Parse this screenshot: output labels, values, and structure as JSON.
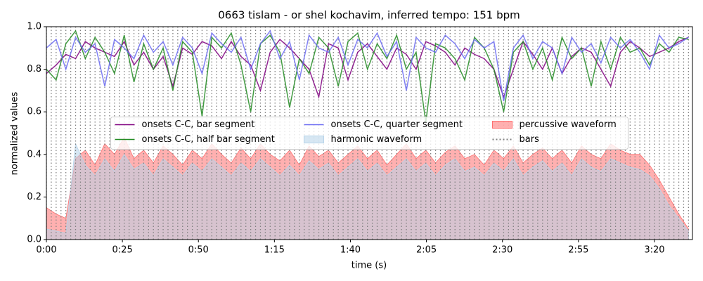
{
  "chart_data": {
    "type": "line",
    "title": "0663 tislam - or shel kochavim, inferred tempo: 151 bpm",
    "xlabel": "time (s)",
    "ylabel": "normalized values",
    "xlim": [
      0,
      212.5
    ],
    "ylim": [
      0,
      1
    ],
    "xticks": [
      {
        "value": 0,
        "label": "0:00"
      },
      {
        "value": 25,
        "label": "0:25"
      },
      {
        "value": 50,
        "label": "0:50"
      },
      {
        "value": 75,
        "label": "1:15"
      },
      {
        "value": 100,
        "label": "1:40"
      },
      {
        "value": 125,
        "label": "2:05"
      },
      {
        "value": 150,
        "label": "2:30"
      },
      {
        "value": 175,
        "label": "2:55"
      },
      {
        "value": 200,
        "label": "3:20"
      }
    ],
    "yticks": [
      {
        "value": 0,
        "label": "0.0"
      },
      0.2,
      0.4,
      0.6,
      0.8,
      {
        "value": 1,
        "label": "1.0"
      }
    ],
    "legend": "center",
    "x": [
      0,
      3.2,
      6.4,
      9.6,
      12.8,
      16,
      19.2,
      22.4,
      25.6,
      28.8,
      32,
      35.2,
      38.4,
      41.6,
      44.8,
      48,
      51.2,
      54.4,
      57.6,
      60.8,
      64,
      67.2,
      70.4,
      73.6,
      76.8,
      80,
      83.2,
      86.4,
      89.6,
      92.8,
      96,
      99.2,
      102.4,
      105.6,
      108.8,
      112,
      115.2,
      118.4,
      121.6,
      124.8,
      128,
      131.2,
      134.4,
      137.6,
      140.8,
      144,
      147.2,
      150.4,
      153.6,
      156.8,
      160,
      163.2,
      166.4,
      169.6,
      172.8,
      176,
      179.2,
      182.4,
      185.6,
      188.8,
      192,
      195.2,
      198.4,
      201.6,
      204.8,
      208,
      211.2
    ],
    "series": [
      {
        "name": "onsets C-C, bar segment",
        "color": "#800080",
        "values": [
          0.78,
          0.82,
          0.87,
          0.85,
          0.93,
          0.9,
          0.88,
          0.86,
          0.93,
          0.82,
          0.88,
          0.8,
          0.86,
          0.72,
          0.9,
          0.87,
          0.93,
          0.91,
          0.85,
          0.93,
          0.86,
          0.82,
          0.7,
          0.88,
          0.94,
          0.9,
          0.85,
          0.8,
          0.67,
          0.92,
          0.9,
          0.75,
          0.88,
          0.92,
          0.86,
          0.8,
          0.9,
          0.87,
          0.8,
          0.93,
          0.91,
          0.88,
          0.82,
          0.9,
          0.87,
          0.85,
          0.8,
          0.67,
          0.8,
          0.93,
          0.87,
          0.8,
          0.9,
          0.78,
          0.86,
          0.9,
          0.88,
          0.8,
          0.72,
          0.88,
          0.93,
          0.9,
          0.86,
          0.88,
          0.9,
          0.93,
          0.95
        ]
      },
      {
        "name": "onsets C-C, half bar segment",
        "color": "#228b22",
        "values": [
          0.8,
          0.75,
          0.92,
          0.98,
          0.85,
          0.95,
          0.88,
          0.78,
          0.96,
          0.74,
          0.92,
          0.8,
          0.9,
          0.7,
          0.93,
          0.88,
          0.58,
          0.95,
          0.9,
          0.97,
          0.82,
          0.6,
          0.92,
          0.96,
          0.88,
          0.62,
          0.85,
          0.78,
          0.95,
          0.9,
          0.72,
          0.93,
          0.97,
          0.8,
          0.92,
          0.85,
          0.96,
          0.8,
          0.88,
          0.55,
          0.92,
          0.9,
          0.85,
          0.75,
          0.95,
          0.9,
          0.8,
          0.6,
          0.88,
          0.93,
          0.8,
          0.9,
          0.75,
          0.95,
          0.85,
          0.9,
          0.72,
          0.93,
          0.8,
          0.95,
          0.88,
          0.9,
          0.82,
          0.92,
          0.88,
          0.95,
          0.94
        ]
      },
      {
        "name": "onsets C-C, quarter segment",
        "color": "#6b6bf2",
        "values": [
          0.9,
          0.94,
          0.8,
          0.95,
          0.88,
          0.92,
          0.72,
          0.94,
          0.9,
          0.85,
          0.96,
          0.88,
          0.93,
          0.82,
          0.95,
          0.9,
          0.78,
          0.97,
          0.92,
          0.88,
          0.95,
          0.8,
          0.92,
          0.98,
          0.85,
          0.93,
          0.75,
          0.96,
          0.9,
          0.88,
          0.95,
          0.82,
          0.94,
          0.9,
          0.97,
          0.86,
          0.93,
          0.7,
          0.95,
          0.9,
          0.88,
          0.96,
          0.92,
          0.85,
          0.94,
          0.9,
          0.93,
          0.65,
          0.9,
          0.96,
          0.85,
          0.93,
          0.9,
          0.78,
          0.95,
          0.88,
          0.92,
          0.83,
          0.95,
          0.9,
          0.94,
          0.88,
          0.8,
          0.96,
          0.9,
          0.92,
          0.95
        ]
      },
      {
        "name": "harmonic waveform",
        "color": "#b7d4ea",
        "fill": true,
        "values": [
          0.05,
          0.04,
          0.03,
          0.45,
          0.35,
          0.3,
          0.38,
          0.32,
          0.4,
          0.33,
          0.36,
          0.3,
          0.38,
          0.34,
          0.3,
          0.36,
          0.32,
          0.38,
          0.34,
          0.3,
          0.36,
          0.32,
          0.38,
          0.34,
          0.3,
          0.35,
          0.3,
          0.37,
          0.33,
          0.36,
          0.3,
          0.34,
          0.38,
          0.32,
          0.36,
          0.3,
          0.34,
          0.38,
          0.32,
          0.36,
          0.3,
          0.35,
          0.38,
          0.32,
          0.34,
          0.3,
          0.36,
          0.32,
          0.38,
          0.3,
          0.34,
          0.37,
          0.32,
          0.36,
          0.3,
          0.38,
          0.34,
          0.32,
          0.38,
          0.36,
          0.34,
          0.33,
          0.3,
          0.24,
          0.16,
          0.1,
          0.04
        ]
      },
      {
        "name": "percussive waveform",
        "color": "#ff7070",
        "fill": true,
        "values": [
          0.15,
          0.12,
          0.1,
          0.38,
          0.42,
          0.35,
          0.45,
          0.4,
          0.48,
          0.38,
          0.42,
          0.36,
          0.44,
          0.4,
          0.35,
          0.42,
          0.38,
          0.45,
          0.4,
          0.36,
          0.43,
          0.38,
          0.45,
          0.4,
          0.37,
          0.42,
          0.35,
          0.44,
          0.39,
          0.42,
          0.36,
          0.4,
          0.44,
          0.38,
          0.42,
          0.35,
          0.4,
          0.45,
          0.38,
          0.42,
          0.36,
          0.41,
          0.44,
          0.38,
          0.4,
          0.35,
          0.42,
          0.38,
          0.44,
          0.36,
          0.4,
          0.43,
          0.38,
          0.42,
          0.36,
          0.44,
          0.4,
          0.38,
          0.45,
          0.42,
          0.4,
          0.4,
          0.35,
          0.28,
          0.2,
          0.12,
          0.05
        ]
      }
    ],
    "bars": {
      "name": "bars",
      "color": "#808080",
      "x": [
        0,
        1.6,
        3.2,
        4.8,
        6.4,
        8,
        9.6,
        11.2,
        12.8,
        14.4,
        16,
        17.6,
        19.2,
        20.8,
        22.4,
        24,
        25.6,
        27.2,
        28.8,
        30.4,
        32,
        33.6,
        35.2,
        36.8,
        38.4,
        40,
        41.6,
        43.2,
        44.8,
        46.4,
        48,
        49.6,
        51.2,
        52.8,
        54.4,
        56,
        57.6,
        59.2,
        60.8,
        62.4,
        64,
        65.6,
        67.2,
        68.8,
        70.4,
        72,
        73.6,
        75.2,
        76.8,
        78.4,
        80,
        81.6,
        83.2,
        84.8,
        86.4,
        88,
        89.6,
        91.2,
        92.8,
        94.4,
        96,
        97.6,
        99.2,
        100.8,
        102.4,
        104,
        105.6,
        107.2,
        108.8,
        110.4,
        112,
        113.6,
        115.2,
        116.8,
        118.4,
        120,
        121.6,
        123.2,
        124.8,
        126.4,
        128,
        129.6,
        131.2,
        132.8,
        134.4,
        136,
        137.6,
        139.2,
        140.8,
        142.4,
        144,
        145.6,
        147.2,
        148.8,
        150.4,
        152,
        153.6,
        155.2,
        156.8,
        158.4,
        160,
        161.6,
        163.2,
        164.8,
        166.4,
        168,
        169.6,
        171.2,
        172.8,
        174.4,
        176,
        177.6,
        179.2,
        180.8,
        182.4,
        184,
        185.6,
        187.2,
        188.8,
        190.4,
        192,
        193.6,
        195.2,
        196.8,
        198.4,
        200,
        201.6,
        203.2,
        204.8,
        206.4,
        208,
        209.6,
        211.2
      ]
    }
  }
}
